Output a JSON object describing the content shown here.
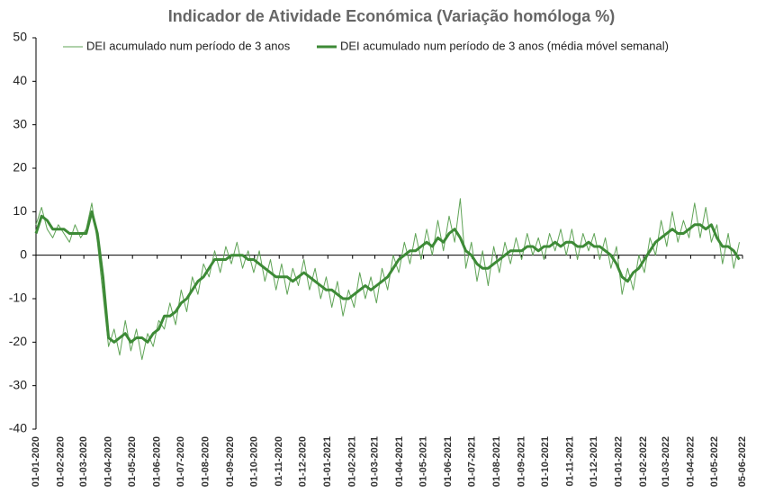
{
  "chart_data": {
    "type": "line",
    "title": "Indicador de Atividade Económica (Variação homóloga %)",
    "x": [
      "01-01-2020",
      "08-01-2020",
      "15-01-2020",
      "22-01-2020",
      "29-01-2020",
      "05-02-2020",
      "12-02-2020",
      "19-02-2020",
      "26-02-2020",
      "04-03-2020",
      "11-03-2020",
      "18-03-2020",
      "25-03-2020",
      "01-04-2020",
      "08-04-2020",
      "15-04-2020",
      "22-04-2020",
      "29-04-2020",
      "06-05-2020",
      "13-05-2020",
      "20-05-2020",
      "27-05-2020",
      "03-06-2020",
      "10-06-2020",
      "17-06-2020",
      "24-06-2020",
      "01-07-2020",
      "08-07-2020",
      "15-07-2020",
      "22-07-2020",
      "29-07-2020",
      "05-08-2020",
      "12-08-2020",
      "19-08-2020",
      "26-08-2020",
      "02-09-2020",
      "09-09-2020",
      "16-09-2020",
      "23-09-2020",
      "30-09-2020",
      "07-10-2020",
      "14-10-2020",
      "21-10-2020",
      "28-10-2020",
      "04-11-2020",
      "11-11-2020",
      "18-11-2020",
      "25-11-2020",
      "02-12-2020",
      "09-12-2020",
      "16-12-2020",
      "23-12-2020",
      "30-12-2020",
      "06-01-2021",
      "13-01-2021",
      "20-01-2021",
      "27-01-2021",
      "03-02-2021",
      "10-02-2021",
      "17-02-2021",
      "24-02-2021",
      "03-03-2021",
      "10-03-2021",
      "17-03-2021",
      "24-03-2021",
      "31-03-2021",
      "07-04-2021",
      "14-04-2021",
      "21-04-2021",
      "28-04-2021",
      "05-05-2021",
      "12-05-2021",
      "19-05-2021",
      "26-05-2021",
      "02-06-2021",
      "09-06-2021",
      "16-06-2021",
      "23-06-2021",
      "30-06-2021",
      "07-07-2021",
      "14-07-2021",
      "21-07-2021",
      "28-07-2021",
      "04-08-2021",
      "11-08-2021",
      "18-08-2021",
      "25-08-2021",
      "01-09-2021",
      "08-09-2021",
      "15-09-2021",
      "22-09-2021",
      "29-09-2021",
      "06-10-2021",
      "13-10-2021",
      "20-10-2021",
      "27-10-2021",
      "03-11-2021",
      "10-11-2021",
      "17-11-2021",
      "24-11-2021",
      "01-12-2021",
      "08-12-2021",
      "15-12-2021",
      "22-12-2021",
      "29-12-2021",
      "05-01-2022",
      "12-01-2022",
      "19-01-2022",
      "26-01-2022",
      "02-02-2022",
      "09-02-2022",
      "16-02-2022",
      "23-02-2022",
      "02-03-2022",
      "09-03-2022",
      "16-03-2022",
      "23-03-2022",
      "30-03-2022",
      "06-04-2022",
      "13-04-2022",
      "20-04-2022",
      "27-04-2022",
      "04-05-2022",
      "11-05-2022",
      "18-05-2022",
      "25-05-2022",
      "01-06-2022"
    ],
    "series": [
      {
        "name": "DEI acumulado num período de 3 anos",
        "color": "#5fa356",
        "width": 1,
        "values": [
          7,
          11,
          6,
          4,
          7,
          5,
          3,
          7,
          4,
          6,
          12,
          3,
          -9,
          -21,
          -17,
          -23,
          -15,
          -22,
          -17,
          -24,
          -18,
          -21,
          -15,
          -17,
          -11,
          -16,
          -8,
          -13,
          -5,
          -9,
          -2,
          -5,
          1,
          -4,
          2,
          -2,
          3,
          -3,
          1,
          -4,
          1,
          -6,
          -1,
          -8,
          -2,
          -9,
          -3,
          -7,
          -1,
          -8,
          -3,
          -10,
          -5,
          -12,
          -6,
          -14,
          -8,
          -12,
          -4,
          -10,
          -5,
          -11,
          -3,
          -8,
          0,
          -4,
          3,
          -2,
          5,
          -1,
          6,
          0,
          8,
          1,
          9,
          3,
          13,
          -3,
          3,
          -6,
          1,
          -7,
          2,
          -4,
          3,
          -2,
          4,
          -1,
          5,
          0,
          4,
          -1,
          5,
          1,
          6,
          0,
          6,
          -1,
          5,
          1,
          5,
          -1,
          4,
          -3,
          2,
          -9,
          -3,
          -8,
          0,
          -4,
          4,
          0,
          8,
          2,
          10,
          3,
          8,
          4,
          12,
          4,
          11,
          3,
          7,
          -2,
          5,
          -3,
          3
        ]
      },
      {
        "name": "DEI acumulado num período de 3 anos (média móvel semanal)",
        "color": "#3d8a36",
        "width": 3,
        "values": [
          5,
          9,
          8,
          6,
          6,
          6,
          5,
          5,
          5,
          5,
          10,
          5,
          -5,
          -19,
          -20,
          -19,
          -18,
          -20,
          -19,
          -19,
          -20,
          -18,
          -17,
          -14,
          -14,
          -13,
          -11,
          -10,
          -8,
          -6,
          -5,
          -3,
          -1,
          -1,
          -1,
          0,
          0,
          0,
          -1,
          -1,
          -2,
          -3,
          -4,
          -5,
          -5,
          -5,
          -6,
          -5,
          -4,
          -5,
          -6,
          -7,
          -8,
          -8,
          -9,
          -10,
          -10,
          -9,
          -8,
          -7,
          -8,
          -7,
          -6,
          -5,
          -3,
          -1,
          0,
          1,
          1,
          2,
          3,
          2,
          4,
          3,
          5,
          6,
          4,
          1,
          0,
          -2,
          -3,
          -3,
          -2,
          -1,
          0,
          1,
          1,
          1,
          2,
          2,
          1,
          2,
          2,
          3,
          2,
          3,
          3,
          2,
          2,
          3,
          2,
          2,
          1,
          0,
          -2,
          -5,
          -6,
          -4,
          -3,
          -1,
          1,
          3,
          4,
          5,
          6,
          5,
          5,
          6,
          7,
          7,
          6,
          7,
          4,
          2,
          2,
          1,
          -1
        ]
      }
    ],
    "xlim": [
      "01-01-2020",
      "05-06-2022"
    ],
    "xticks": [
      "01-01-2020",
      "01-02-2020",
      "01-03-2020",
      "01-04-2020",
      "01-05-2020",
      "01-06-2020",
      "01-07-2020",
      "01-08-2020",
      "01-09-2020",
      "01-10-2020",
      "01-11-2020",
      "01-12-2020",
      "01-01-2021",
      "01-02-2021",
      "01-03-2021",
      "01-04-2021",
      "01-05-2021",
      "01-06-2021",
      "01-07-2021",
      "01-08-2021",
      "01-09-2021",
      "01-10-2021",
      "01-11-2021",
      "01-12-2021",
      "01-01-2022",
      "01-02-2022",
      "01-03-2022",
      "01-04-2022",
      "01-05-2022",
      "05-06-2022"
    ],
    "ylim": [
      -40,
      50
    ],
    "yticks": [
      -40,
      -30,
      -20,
      -10,
      0,
      10,
      20,
      30,
      40,
      50
    ]
  }
}
